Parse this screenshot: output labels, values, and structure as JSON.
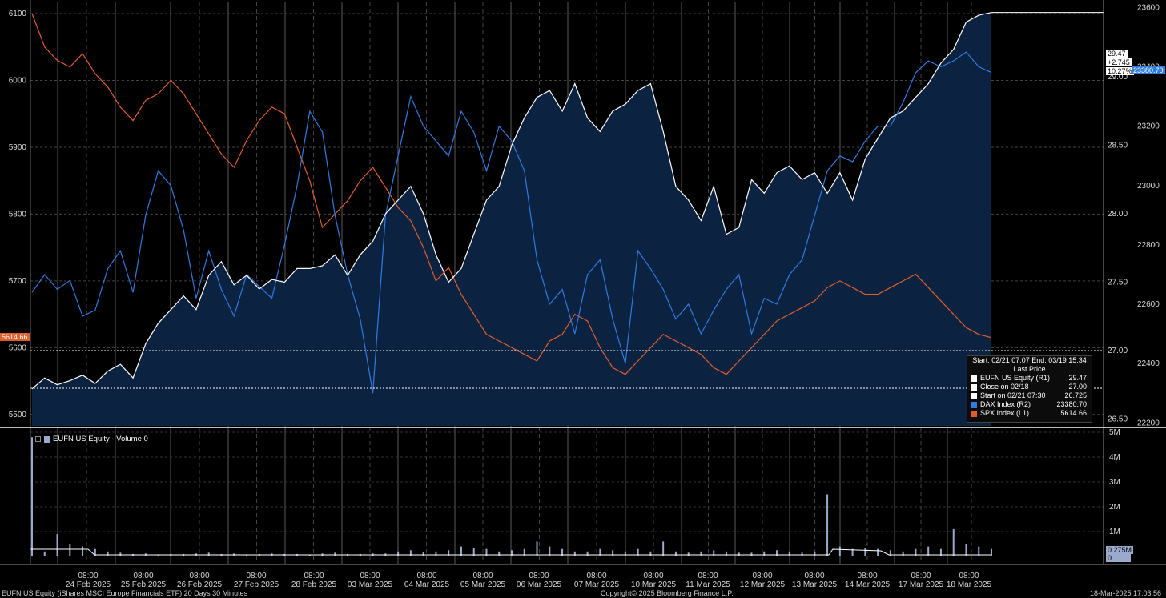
{
  "chart_data": {
    "type": "line",
    "start_end": "Start: 02/21 07:07 End: 03/19 15:34",
    "last_price_header": "Last Price",
    "date_labels": [
      "24 Feb 2025",
      "25 Feb 2025",
      "26 Feb 2025",
      "27 Feb 2025",
      "28 Feb 2025",
      "03 Mar 2025",
      "04 Mar 2025",
      "05 Mar 2025",
      "06 Mar 2025",
      "07 Mar 2025",
      "10 Mar 2025",
      "11 Mar 2025",
      "12 Mar 2025",
      "13 Mar 2025",
      "14 Mar 2025",
      "17 Mar 2025",
      "18 Mar 2025"
    ],
    "time_label": "08:00",
    "left_axis": {
      "ticks": [
        5500,
        5600,
        5700,
        5800,
        5900,
        6000,
        6100
      ],
      "range": [
        5483,
        6118
      ]
    },
    "right1_axis": {
      "ticks": [
        "26.50",
        "27.00",
        "27.50",
        "28.00",
        "28.50",
        "29.00"
      ],
      "range": [
        26.45,
        29.55
      ]
    },
    "right2_axis": {
      "ticks": [
        22200,
        22400,
        22600,
        22800,
        23000,
        23200,
        23400,
        23600
      ],
      "range": [
        22190,
        23620
      ]
    },
    "volume_axis": {
      "ticks": [
        "1M",
        "2M",
        "3M",
        "4M",
        "5M"
      ]
    },
    "series": [
      {
        "name": "EUFN US Equity (R1)",
        "last": "29.47",
        "color": "#ffffff",
        "values": [
          26.72,
          26.8,
          26.75,
          26.78,
          26.82,
          26.76,
          26.85,
          26.9,
          26.8,
          27.05,
          27.2,
          27.3,
          27.4,
          27.3,
          27.55,
          27.65,
          27.48,
          27.55,
          27.45,
          27.52,
          27.5,
          27.6,
          27.6,
          27.62,
          27.7,
          27.55,
          27.7,
          27.8,
          28.0,
          28.1,
          28.2,
          28.0,
          27.7,
          27.5,
          27.6,
          27.85,
          28.1,
          28.2,
          28.5,
          28.7,
          28.85,
          28.9,
          28.75,
          28.95,
          28.7,
          28.6,
          28.75,
          28.8,
          28.9,
          28.95,
          28.6,
          28.2,
          28.1,
          27.95,
          28.2,
          27.85,
          27.9,
          28.25,
          28.15,
          28.3,
          28.35,
          28.25,
          28.3,
          28.15,
          28.3,
          28.1,
          28.4,
          28.55,
          28.7,
          28.75,
          28.85,
          28.95,
          29.1,
          29.2,
          29.4,
          29.45,
          29.47
        ]
      },
      {
        "name": "DAX Index (R2)",
        "last": "23380.70",
        "color": "#2f7be0",
        "values": [
          22640,
          22700,
          22650,
          22680,
          22560,
          22580,
          22720,
          22780,
          22640,
          22900,
          23050,
          23000,
          22850,
          22620,
          22780,
          22650,
          22560,
          22700,
          22660,
          22620,
          22800,
          23000,
          23250,
          23180,
          22900,
          22700,
          22550,
          22300,
          22900,
          23100,
          23300,
          23200,
          23150,
          23100,
          23250,
          23180,
          23050,
          23200,
          23150,
          23050,
          22750,
          22600,
          22650,
          22500,
          22700,
          22750,
          22550,
          22400,
          22780,
          22720,
          22650,
          22550,
          22600,
          22500,
          22580,
          22650,
          22700,
          22500,
          22620,
          22600,
          22700,
          22750,
          22900,
          23050,
          23100,
          23080,
          23150,
          23200,
          23200,
          23280,
          23380,
          23420,
          23400,
          23420,
          23450,
          23400,
          23381
        ]
      },
      {
        "name": "SPX Index (L1)",
        "last": "5614.66",
        "color": "#e0602d",
        "values": [
          6100,
          6050,
          6030,
          6020,
          6040,
          6010,
          5990,
          5960,
          5940,
          5970,
          5980,
          6000,
          5980,
          5950,
          5920,
          5890,
          5870,
          5910,
          5940,
          5960,
          5950,
          5900,
          5850,
          5780,
          5800,
          5820,
          5850,
          5870,
          5840,
          5810,
          5790,
          5750,
          5700,
          5720,
          5680,
          5650,
          5620,
          5610,
          5600,
          5590,
          5580,
          5610,
          5620,
          5650,
          5640,
          5600,
          5570,
          5560,
          5580,
          5600,
          5620,
          5610,
          5600,
          5590,
          5570,
          5560,
          5580,
          5600,
          5620,
          5640,
          5650,
          5660,
          5670,
          5690,
          5700,
          5690,
          5680,
          5680,
          5690,
          5700,
          5710,
          5690,
          5670,
          5650,
          5630,
          5620,
          5615
        ]
      }
    ],
    "reference_lines": [
      {
        "name": "Close on 02/18",
        "value": "27.00",
        "color": "#ffffff"
      },
      {
        "name": "Start on 02/21 07:30",
        "value": "26.725",
        "color": "#ffffff"
      }
    ],
    "volume_series": {
      "name": "EUFN US Equity - Volume 0",
      "current": "0.275M",
      "values_m": [
        4.8,
        0.2,
        0.9,
        0.5,
        0.4,
        0.3,
        0.2,
        0.15,
        0.1,
        0.12,
        0.08,
        0.1,
        0.1,
        0.12,
        0.15,
        0.1,
        0.12,
        0.08,
        0.1,
        0.12,
        0.1,
        0.1,
        0.08,
        0.12,
        0.15,
        0.1,
        0.1,
        0.12,
        0.12,
        0.2,
        0.25,
        0.18,
        0.2,
        0.25,
        0.4,
        0.35,
        0.3,
        0.2,
        0.25,
        0.3,
        0.6,
        0.4,
        0.3,
        0.2,
        0.2,
        0.3,
        0.25,
        0.2,
        0.3,
        0.2,
        0.6,
        0.2,
        0.15,
        0.2,
        0.25,
        0.2,
        0.15,
        0.15,
        0.2,
        0.25,
        0.2,
        0.15,
        0.2,
        2.5,
        0.4,
        0.3,
        0.35,
        0.3,
        0.25,
        0.2,
        0.3,
        0.4,
        0.3,
        1.1,
        0.5,
        0.4,
        0.3
      ]
    }
  },
  "last_tags": {
    "eufn": "29.47",
    "change": "+2.745",
    "pct": "10.27%",
    "dax": "23380.70",
    "spx": "5614.66",
    "volume": "0.275M",
    "volume_zero": "0"
  },
  "footer": {
    "left": "EUFN US Equity (iShares MSCI Europe Financials ETF) 20 Days 30 Minutes",
    "center": "Copyright© 2025 Bloomberg Finance L.P.",
    "right": "18-Mar-2025 17:03:56"
  },
  "colors": {
    "bg": "#000000",
    "area": "#0b2240",
    "grid": "#3a3a3a",
    "volume": "#9aa9cc"
  }
}
